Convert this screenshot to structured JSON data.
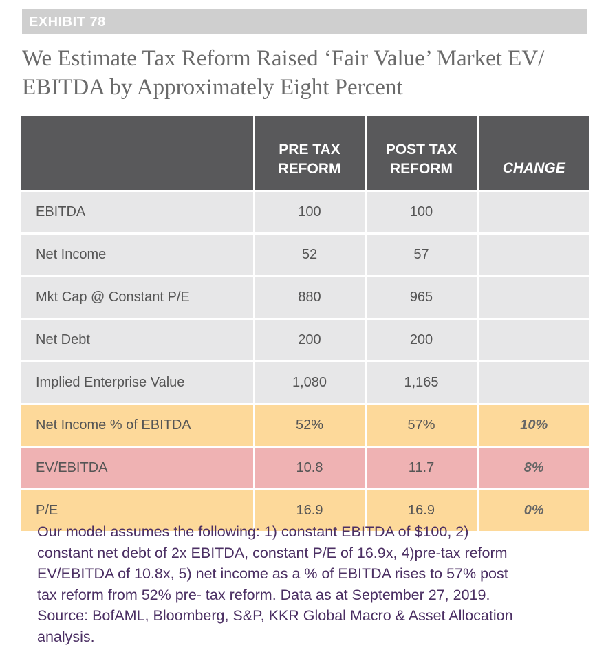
{
  "exhibit": {
    "label": "EXHIBIT 78"
  },
  "title": {
    "line1": "We Estimate Tax Reform Raised ‘Fair Value’ Market EV/",
    "line2": "EBITDA by Approximately Eight Percent"
  },
  "table": {
    "headers": {
      "pre": [
        "PRE TAX",
        "REFORM"
      ],
      "post": [
        "POST TAX",
        "REFORM"
      ],
      "change": "CHANGE"
    },
    "rows": [
      {
        "label": "EBITDA",
        "pre": "100",
        "post": "100",
        "change": ""
      },
      {
        "label": "Net Income",
        "pre": "52",
        "post": "57",
        "change": ""
      },
      {
        "label": "Mkt Cap @ Constant P/E",
        "pre": "880",
        "post": "965",
        "change": ""
      },
      {
        "label": "Net Debt",
        "pre": "200",
        "post": "200",
        "change": ""
      },
      {
        "label": "Implied Enterprise Value",
        "pre": "1,080",
        "post": "1,165",
        "change": ""
      },
      {
        "label": "Net Income % of EBITDA",
        "pre": "52%",
        "post": "57%",
        "change": "10%"
      },
      {
        "label": "EV/EBITDA",
        "pre": "10.8",
        "post": "11.7",
        "change": "8%"
      },
      {
        "label": "P/E",
        "pre": "16.9",
        "post": "16.9",
        "change": "0%"
      }
    ],
    "highlight_colors": {
      "yellow": "#fdd99a",
      "pink": "#efb2b3",
      "grey": "#e7e7e8",
      "header": "#59595b"
    }
  },
  "note": {
    "lines": [
      "Our model assumes the following: 1) constant EBITDA of $100, 2)",
      "constant net debt of 2x EBITDA, constant P/E of 16.9x, 4)pre-tax reform",
      "EV/EBITDA of 10.8x, 5) net income as a % of EBITDA rises to 57% post",
      "tax reform from 52% pre- tax reform. Data as at September 27, 2019.",
      "Source: BofAML, Bloomberg, S&P, KKR Global Macro & Asset Allocation",
      "analysis."
    ]
  }
}
